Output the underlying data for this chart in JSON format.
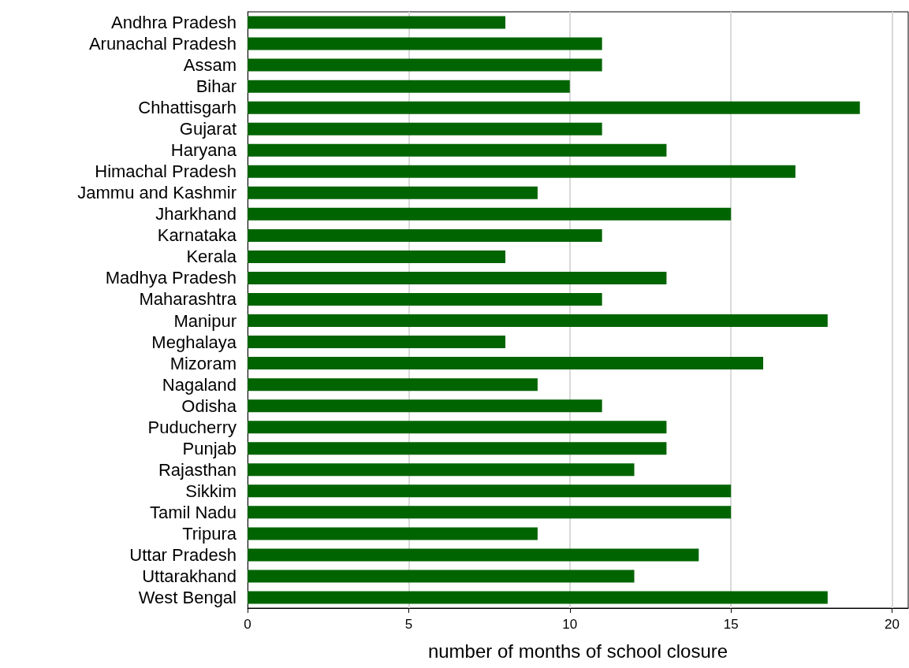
{
  "chart_data": {
    "type": "bar",
    "orientation": "horizontal",
    "xlabel": "number of months of school closure",
    "categories": [
      "Andhra Pradesh",
      "Arunachal Pradesh",
      "Assam",
      "Bihar",
      "Chhattisgarh",
      "Gujarat",
      "Haryana",
      "Himachal Pradesh",
      "Jammu and Kashmir",
      "Jharkhand",
      "Karnataka",
      "Kerala",
      "Madhya Pradesh",
      "Maharashtra",
      "Manipur",
      "Meghalaya",
      "Mizoram",
      "Nagaland",
      "Odisha",
      "Puducherry",
      "Punjab",
      "Rajasthan",
      "Sikkim",
      "Tamil Nadu",
      "Tripura",
      "Uttar Pradesh",
      "Uttarakhand",
      "West Bengal"
    ],
    "values": [
      8,
      11,
      11,
      10,
      19,
      11,
      13,
      17,
      9,
      15,
      11,
      8,
      13,
      11,
      18,
      8,
      16,
      9,
      11,
      13,
      13,
      12,
      15,
      15,
      9,
      14,
      12,
      18
    ],
    "color": "#006400",
    "xlim": [
      0,
      20.5
    ],
    "xticks": [
      0,
      5,
      10,
      15,
      20
    ],
    "grid": "x"
  }
}
